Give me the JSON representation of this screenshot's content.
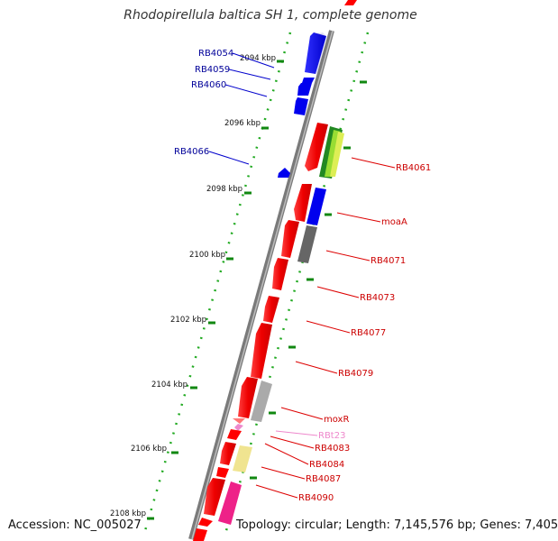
{
  "title": "Rhodopirellula baltica SH 1, complete genome",
  "footer": {
    "accession_label": "Accession:",
    "accession": "NC_005027",
    "topology_label": "Topology:",
    "topology": "circular",
    "length_label": "Length:",
    "length": "7,145,576 bp",
    "genes_label": "Genes:",
    "genes": "7,405"
  },
  "colors": {
    "forward_gene": "#0000ee",
    "reverse_gene": "#ff0000",
    "forward_label": "#000099",
    "reverse_label": "#cc0000",
    "rna_label": "#ee88cc",
    "tick": "#22aa22",
    "backbone": "#888888"
  },
  "scale_ticks": [
    "2094 kbp",
    "2096 kbp",
    "2098 kbp",
    "2100 kbp",
    "2102 kbp",
    "2104 kbp",
    "2106 kbp",
    "2108 kbp"
  ],
  "forward_labels": [
    "RB4054",
    "RB4059",
    "RB4060",
    "RB4066"
  ],
  "reverse_labels": [
    "RB4061",
    "moaA",
    "RB4071",
    "RB4073",
    "RB4077",
    "RB4079",
    "moxR",
    "RBt23",
    "RB4083",
    "RB4084",
    "RB4087",
    "RB4090"
  ]
}
